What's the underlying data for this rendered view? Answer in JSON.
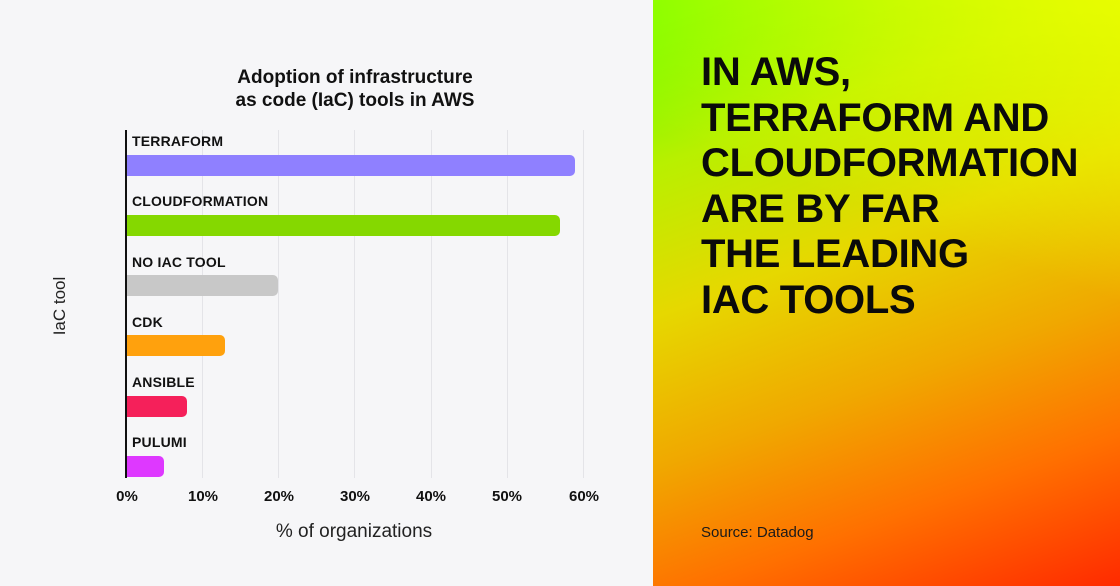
{
  "chart": {
    "title_line1": "Adoption of infrastructure",
    "title_line2": "as code (IaC) tools in AWS",
    "y_axis_label": "IaC tool",
    "x_axis_label": "% of organizations",
    "ticks": [
      "0%",
      "10%",
      "20%",
      "30%",
      "40%",
      "50%",
      "60%"
    ],
    "bars": [
      {
        "label": "TERRAFORM",
        "value": 59,
        "color": "#8f80ff"
      },
      {
        "label": "CLOUDFORMATION",
        "value": 57,
        "color": "#85d800"
      },
      {
        "label": "NO IAC TOOL",
        "value": 20,
        "color": "#c8c8c8"
      },
      {
        "label": "CDK",
        "value": 13,
        "color": "#ffa10d"
      },
      {
        "label": "ANSIBLE",
        "value": 8,
        "color": "#f5205a"
      },
      {
        "label": "PULUMI",
        "value": 5,
        "color": "#de38ff"
      }
    ]
  },
  "panel": {
    "headline_lines": [
      "IN AWS,",
      "TERRAFORM AND",
      "CLOUDFORMATION",
      "ARE BY FAR",
      "THE LEADING",
      "IAC TOOLS"
    ],
    "source": "Source: Datadog"
  },
  "chart_data": {
    "type": "bar",
    "orientation": "horizontal",
    "title": "Adoption of infrastructure as code (IaC) tools in AWS",
    "categories": [
      "TERRAFORM",
      "CLOUDFORMATION",
      "NO IAC TOOL",
      "CDK",
      "ANSIBLE",
      "PULUMI"
    ],
    "values": [
      59,
      57,
      20,
      13,
      8,
      5
    ],
    "xlabel": "% of organizations",
    "ylabel": "IaC tool",
    "xlim": [
      0,
      60
    ],
    "x_ticks": [
      "0%",
      "10%",
      "20%",
      "30%",
      "40%",
      "50%",
      "60%"
    ],
    "grid": true,
    "legend": null,
    "colors": [
      "#8f80ff",
      "#85d800",
      "#c8c8c8",
      "#ffa10d",
      "#f5205a",
      "#de38ff"
    ]
  }
}
